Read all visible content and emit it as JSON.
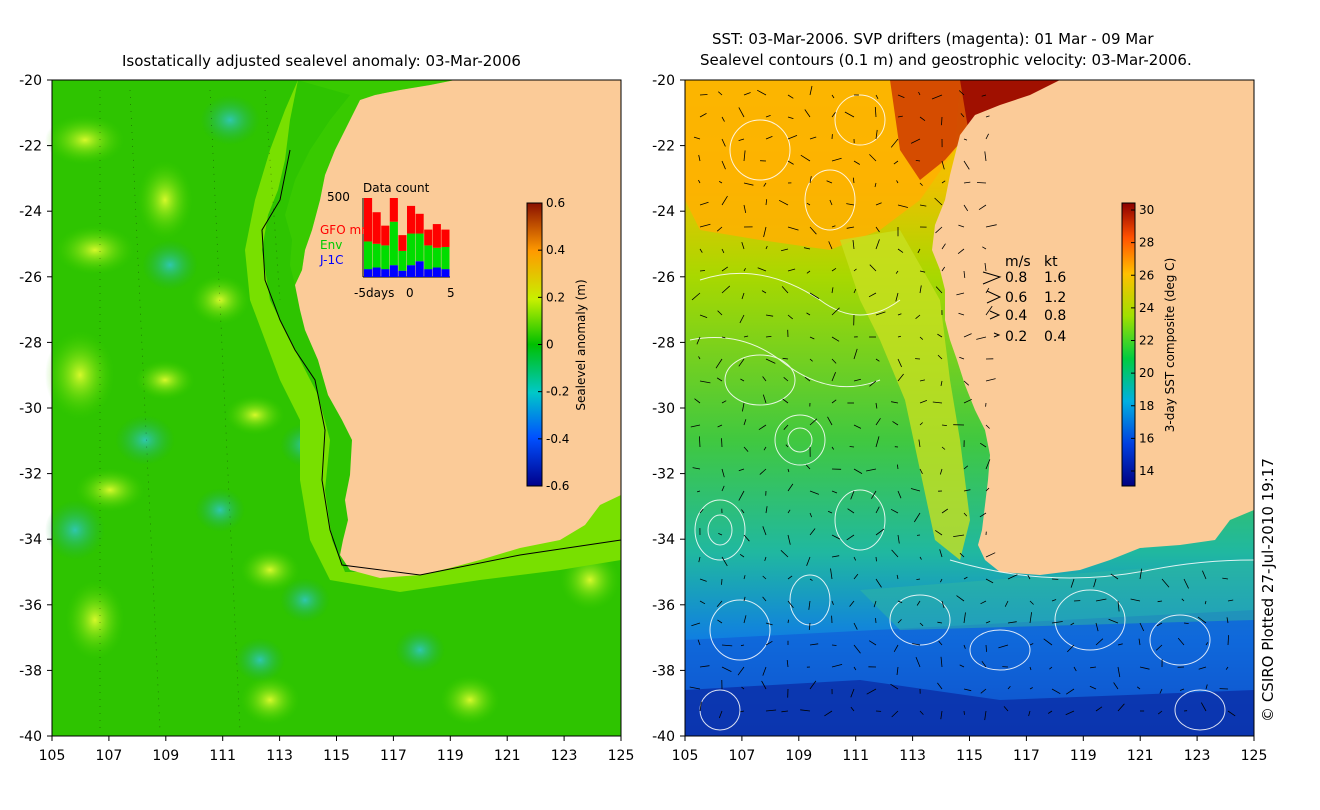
{
  "left_panel": {
    "title": "Isostatically adjusted sealevel anomaly: 03-Mar-2006",
    "x_ticks": [
      "105",
      "107",
      "109",
      "111",
      "113",
      "115",
      "117",
      "119",
      "121",
      "123",
      "125"
    ],
    "y_ticks": [
      "-20",
      "-22",
      "-24",
      "-26",
      "-28",
      "-30",
      "-32",
      "-34",
      "-36",
      "-38",
      "-40"
    ],
    "colorbar": {
      "label": "Sealevel anomaly (m)",
      "ticks": [
        "0.6",
        "0.4",
        "0.2",
        "0",
        "-0.2",
        "-0.4",
        "-0.6"
      ],
      "range": [
        -0.6,
        0.6
      ]
    },
    "inset": {
      "title": "Data count",
      "ymax_label": "500",
      "x_label": "days",
      "x_ticks": [
        "-5",
        "0",
        "5"
      ],
      "legend": [
        {
          "label": "GFO mm",
          "color": "#ff0000"
        },
        {
          "label": "Env",
          "color": "#00dd00"
        },
        {
          "label": "J-1C",
          "color": "#0000ff"
        }
      ],
      "bars": [
        {
          "red": 0.55,
          "green": 0.35,
          "blue": 0.1
        },
        {
          "red": 0.4,
          "green": 0.3,
          "blue": 0.12
        },
        {
          "red": 0.25,
          "green": 0.3,
          "blue": 0.1
        },
        {
          "red": 0.3,
          "green": 0.55,
          "blue": 0.15
        },
        {
          "red": 0.2,
          "green": 0.25,
          "blue": 0.08
        },
        {
          "red": 0.35,
          "green": 0.4,
          "blue": 0.15
        },
        {
          "red": 0.25,
          "green": 0.35,
          "blue": 0.2
        },
        {
          "red": 0.2,
          "green": 0.3,
          "blue": 0.1
        },
        {
          "red": 0.3,
          "green": 0.25,
          "blue": 0.12
        },
        {
          "red": 0.22,
          "green": 0.28,
          "blue": 0.1
        }
      ]
    }
  },
  "right_panel": {
    "title_line1": "SST: 03-Mar-2006. SVP drifters (magenta): 01 Mar - 09 Mar",
    "title_line2": "Sealevel contours (0.1 m) and geostrophic velocity: 03-Mar-2006.",
    "x_ticks": [
      "105",
      "107",
      "109",
      "111",
      "113",
      "115",
      "117",
      "119",
      "121",
      "123",
      "125"
    ],
    "y_ticks": [
      "-20",
      "-22",
      "-24",
      "-26",
      "-28",
      "-30",
      "-32",
      "-34",
      "-36",
      "-38",
      "-40"
    ],
    "colorbar": {
      "label": "3-day SST composite (deg C)",
      "ticks": [
        "30",
        "28",
        "26",
        "24",
        "22",
        "20",
        "18",
        "16",
        "14"
      ],
      "range": [
        13,
        30
      ]
    },
    "velocity_legend": {
      "header_ms": "m/s",
      "header_kt": "kt",
      "rows": [
        {
          "ms": "0.8",
          "kt": "1.6"
        },
        {
          "ms": "0.6",
          "kt": "1.2"
        },
        {
          "ms": "0.4",
          "kt": "0.8"
        },
        {
          "ms": "0.2",
          "kt": "0.4"
        }
      ]
    }
  },
  "copyright": "© CSIRO Plotted 27-Jul-2010 19:17",
  "colors": {
    "land": "#fbcb98",
    "ocean_green": "#22cc00",
    "ocean_light": "#55e000",
    "sst_blue": "#1a8cdd",
    "sst_red": "#9c1000"
  }
}
